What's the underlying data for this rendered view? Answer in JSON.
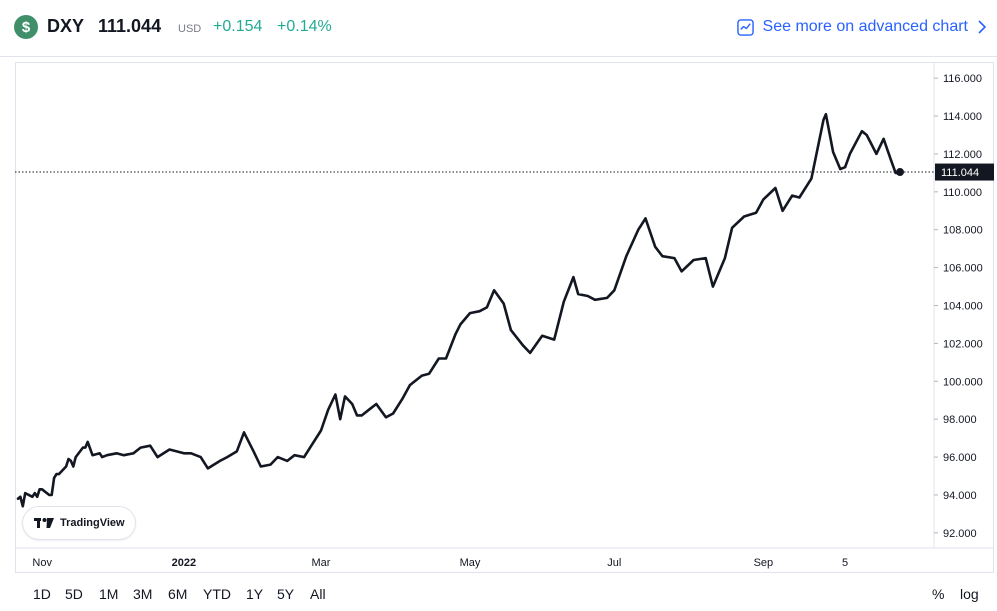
{
  "header": {
    "symbol_icon_glyph": "$",
    "symbol": "DXY",
    "price": "111.044",
    "currency": "USD",
    "change": "+0.154",
    "change_pct": "+0.14%",
    "advanced_chart_label": "See more on advanced chart",
    "colors": {
      "positive": "#22ab94",
      "link": "#2962ff",
      "icon_bg": "#3f8f6b"
    }
  },
  "watermark": {
    "label": "TradingView"
  },
  "range_buttons": [
    "1D",
    "5D",
    "1M",
    "3M",
    "6M",
    "YTD",
    "1Y",
    "5Y",
    "All"
  ],
  "scale_buttons": {
    "percent": "%",
    "log": "log"
  },
  "chart_data": {
    "type": "line",
    "title": "",
    "xlabel": "",
    "ylabel": "",
    "ylim": [
      91.2,
      116.8
    ],
    "y_ticks": [
      "116.000",
      "114.000",
      "112.000",
      "110.000",
      "108.000",
      "106.000",
      "104.000",
      "102.000",
      "100.000",
      "98.000",
      "96.000",
      "94.000",
      "92.000"
    ],
    "x_ticks": [
      {
        "label": "Nov",
        "date": "2021-11-01"
      },
      {
        "label": "2022",
        "date": "2022-01-03"
      },
      {
        "label": "Mar",
        "date": "2022-03-01"
      },
      {
        "label": "May",
        "date": "2022-05-02"
      },
      {
        "label": "Jul",
        "date": "2022-07-01"
      },
      {
        "label": "Sep",
        "date": "2022-09-01"
      },
      {
        "label": "5",
        "date": "2022-10-05"
      }
    ],
    "last_value_label": "111.044",
    "line_color": "#131722",
    "series": [
      {
        "x": [
          "2021-10-26",
          "2021-10-27",
          "2021-10-28",
          "2021-10-29",
          "2021-11-01",
          "2021-11-02",
          "2021-11-03",
          "2021-11-04",
          "2021-11-05",
          "2021-11-08",
          "2021-11-09",
          "2021-11-10",
          "2021-11-11",
          "2021-11-12",
          "2021-11-15",
          "2021-11-16",
          "2021-11-17",
          "2021-11-18",
          "2021-11-19",
          "2021-11-22",
          "2021-11-23",
          "2021-11-24",
          "2021-11-26",
          "2021-11-29",
          "2021-11-30",
          "2021-12-02",
          "2021-12-06",
          "2021-12-09",
          "2021-12-13",
          "2021-12-16",
          "2021-12-20",
          "2021-12-23",
          "2021-12-28",
          "2022-01-03",
          "2022-01-06",
          "2022-01-10",
          "2022-01-13",
          "2022-01-18",
          "2022-01-21",
          "2022-01-25",
          "2022-01-28",
          "2022-02-01",
          "2022-02-04",
          "2022-02-08",
          "2022-02-11",
          "2022-02-15",
          "2022-02-18",
          "2022-02-22",
          "2022-02-25",
          "2022-03-01",
          "2022-03-04",
          "2022-03-07",
          "2022-03-09",
          "2022-03-11",
          "2022-03-14",
          "2022-03-16",
          "2022-03-18",
          "2022-03-21",
          "2022-03-24",
          "2022-03-28",
          "2022-03-31",
          "2022-04-04",
          "2022-04-07",
          "2022-04-12",
          "2022-04-15",
          "2022-04-19",
          "2022-04-22",
          "2022-04-26",
          "2022-04-28",
          "2022-05-02",
          "2022-05-06",
          "2022-05-09",
          "2022-05-12",
          "2022-05-16",
          "2022-05-19",
          "2022-05-24",
          "2022-05-27",
          "2022-06-01",
          "2022-06-06",
          "2022-06-10",
          "2022-06-14",
          "2022-06-16",
          "2022-06-20",
          "2022-06-23",
          "2022-06-28",
          "2022-07-01",
          "2022-07-06",
          "2022-07-11",
          "2022-07-14",
          "2022-07-18",
          "2022-07-21",
          "2022-07-26",
          "2022-07-29",
          "2022-08-03",
          "2022-08-08",
          "2022-08-11",
          "2022-08-16",
          "2022-08-19",
          "2022-08-24",
          "2022-08-29",
          "2022-09-01",
          "2022-09-06",
          "2022-09-09",
          "2022-09-13",
          "2022-09-16",
          "2022-09-21",
          "2022-09-26",
          "2022-09-27",
          "2022-09-30",
          "2022-10-03",
          "2022-10-05",
          "2022-10-07",
          "2022-10-12",
          "2022-10-14",
          "2022-10-18",
          "2022-10-21",
          "2022-10-24",
          "2022-10-26",
          "2022-10-27"
        ],
        "y": [
          93.8,
          93.9,
          93.4,
          94.1,
          93.9,
          94.1,
          93.9,
          94.3,
          94.3,
          94.0,
          94.0,
          94.9,
          95.1,
          95.1,
          95.5,
          95.9,
          95.8,
          95.5,
          96.0,
          96.5,
          96.5,
          96.8,
          96.1,
          96.2,
          96.0,
          96.1,
          96.2,
          96.1,
          96.2,
          96.5,
          96.6,
          96.0,
          96.4,
          96.2,
          96.2,
          96.0,
          95.4,
          95.8,
          96.0,
          96.3,
          97.3,
          96.3,
          95.5,
          95.6,
          96.0,
          95.8,
          96.1,
          96.0,
          96.6,
          97.4,
          98.5,
          99.3,
          98.0,
          99.2,
          98.8,
          98.2,
          98.2,
          98.5,
          98.8,
          98.1,
          98.3,
          99.1,
          99.8,
          100.3,
          100.4,
          101.2,
          101.2,
          102.5,
          103.0,
          103.6,
          103.7,
          103.9,
          104.8,
          104.1,
          102.7,
          101.9,
          101.5,
          102.4,
          102.2,
          104.2,
          105.5,
          104.6,
          104.5,
          104.3,
          104.4,
          104.8,
          106.6,
          108.0,
          108.6,
          107.1,
          106.6,
          106.5,
          105.8,
          106.4,
          106.5,
          105.0,
          106.5,
          108.1,
          108.7,
          108.9,
          109.6,
          110.2,
          109.0,
          109.8,
          109.7,
          110.7,
          113.8,
          114.1,
          112.1,
          111.2,
          111.3,
          112.0,
          113.2,
          113.0,
          112.0,
          112.8,
          111.7,
          111.0,
          111.0
        ]
      }
    ]
  }
}
